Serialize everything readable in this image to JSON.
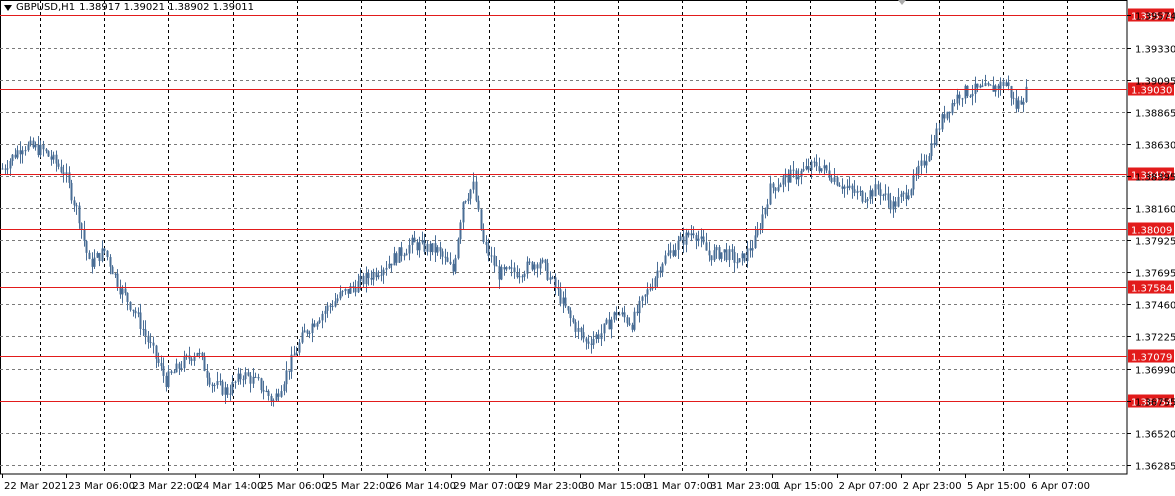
{
  "header": {
    "symbol": "GBPUSD,H1",
    "ohlc": "1.38917 1.39021 1.38902 1.39011"
  },
  "colors": {
    "background": "#ffffff",
    "candle": "#4a6e96",
    "grid": "#7a7a7a",
    "hline": "#e21b1b",
    "hline_label_bg": "#e21b1b",
    "hline_label_text": "#ffffff",
    "axis_text": "#000000"
  },
  "chart_data": {
    "type": "candlestick",
    "ylim": [
      1.3622,
      1.3968
    ],
    "y_ticks": [
      "1.39574",
      "1.39330",
      "1.39095",
      "1.38865",
      "1.38630",
      "1.38395",
      "1.38160",
      "1.37925",
      "1.37695",
      "1.37460",
      "1.37225",
      "1.36990",
      "1.36755",
      "1.36520",
      "1.36285"
    ],
    "x_labels": [
      "22 Mar 2021",
      "23 Mar 06:00",
      "23 Mar 22:00",
      "24 Mar 14:00",
      "25 Mar 06:00",
      "25 Mar 22:00",
      "26 Mar 14:00",
      "29 Mar 07:00",
      "29 Mar 23:00",
      "30 Mar 15:00",
      "31 Mar 07:00",
      "31 Mar 23:00",
      "1 Apr 15:00",
      "2 Apr 07:00",
      "2 Apr 23:00",
      "5 Apr 15:00",
      "6 Apr 07:00"
    ],
    "horizontal_levels": [
      "1.39574",
      "1.39030",
      "1.38407",
      "1.38009",
      "1.37584",
      "1.37079",
      "1.36754"
    ],
    "close_path": [
      [
        0,
        1.3845
      ],
      [
        8,
        1.3862
      ],
      [
        16,
        1.3858
      ],
      [
        24,
        1.3843
      ],
      [
        30,
        1.381
      ],
      [
        34,
        1.3775
      ],
      [
        40,
        1.3785
      ],
      [
        46,
        1.3758
      ],
      [
        52,
        1.374
      ],
      [
        58,
        1.3715
      ],
      [
        64,
        1.369
      ],
      [
        70,
        1.3702
      ],
      [
        76,
        1.3712
      ],
      [
        82,
        1.3688
      ],
      [
        88,
        1.3682
      ],
      [
        94,
        1.3695
      ],
      [
        100,
        1.3688
      ],
      [
        106,
        1.3675
      ],
      [
        112,
        1.37
      ],
      [
        118,
        1.3725
      ],
      [
        124,
        1.3738
      ],
      [
        132,
        1.3752
      ],
      [
        140,
        1.3762
      ],
      [
        150,
        1.3775
      ],
      [
        160,
        1.379
      ],
      [
        170,
        1.3785
      ],
      [
        176,
        1.377
      ],
      [
        180,
        1.3822
      ],
      [
        184,
        1.3832
      ],
      [
        188,
        1.379
      ],
      [
        194,
        1.3768
      ],
      [
        202,
        1.377
      ],
      [
        210,
        1.3778
      ],
      [
        216,
        1.3758
      ],
      [
        222,
        1.3735
      ],
      [
        228,
        1.3718
      ],
      [
        234,
        1.3725
      ],
      [
        240,
        1.374
      ],
      [
        246,
        1.3732
      ],
      [
        252,
        1.3755
      ],
      [
        258,
        1.3778
      ],
      [
        264,
        1.379
      ],
      [
        270,
        1.38
      ],
      [
        276,
        1.3782
      ],
      [
        282,
        1.3784
      ],
      [
        288,
        1.3776
      ],
      [
        294,
        1.3792
      ],
      [
        300,
        1.383
      ],
      [
        306,
        1.3838
      ],
      [
        312,
        1.3842
      ],
      [
        318,
        1.3848
      ],
      [
        324,
        1.384
      ],
      [
        330,
        1.383
      ],
      [
        336,
        1.3825
      ],
      [
        342,
        1.383
      ],
      [
        348,
        1.3818
      ],
      [
        352,
        1.3825
      ],
      [
        356,
        1.3835
      ],
      [
        362,
        1.3858
      ],
      [
        368,
        1.3885
      ],
      [
        374,
        1.39
      ],
      [
        380,
        1.3902
      ],
      [
        386,
        1.3903
      ],
      [
        392,
        1.3908
      ],
      [
        396,
        1.389
      ],
      [
        400,
        1.3901
      ]
    ]
  }
}
